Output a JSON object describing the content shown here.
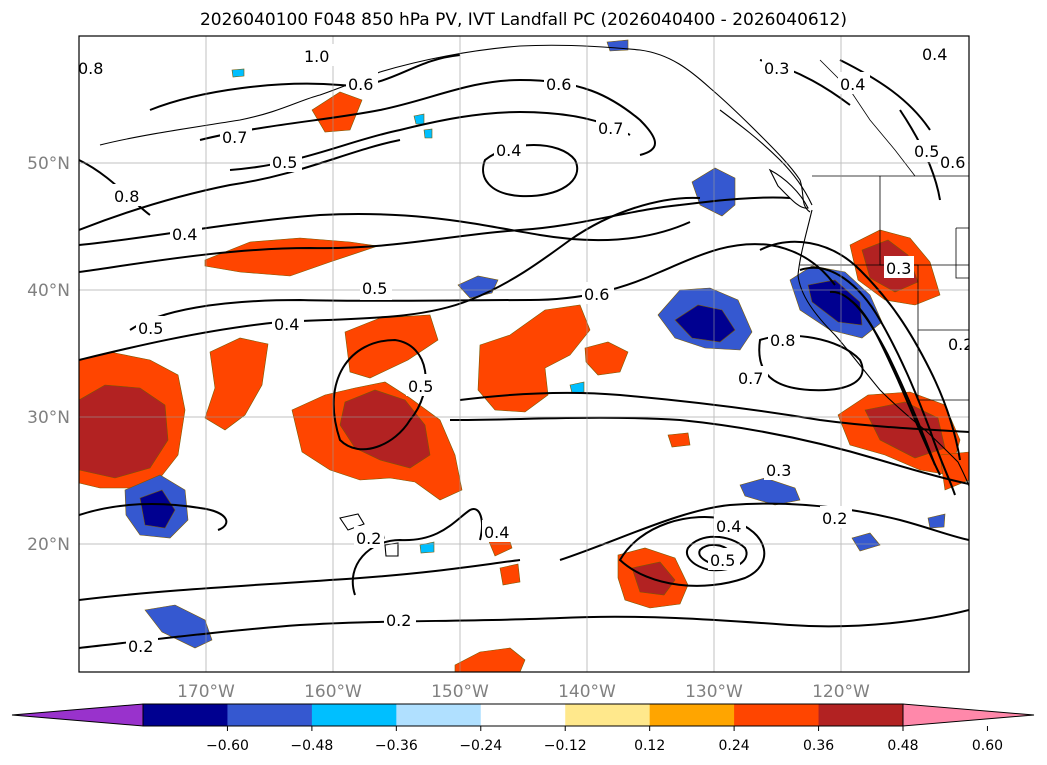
{
  "title": "2026040100 F048 850 hPa PV, IVT Landfall PC (2026040400 - 2026040612)",
  "latitude_labels": [
    "50°N",
    "40°N",
    "30°N",
    "20°N"
  ],
  "longitude_labels": [
    "170°W",
    "160°W",
    "150°W",
    "140°W",
    "130°W",
    "120°W"
  ],
  "colorbar": {
    "ticks": [
      "−0.60",
      "−0.48",
      "−0.36",
      "−0.24",
      "−0.12",
      "0.12",
      "0.24",
      "0.36",
      "0.48",
      "0.60"
    ],
    "colors": [
      "#9932cc",
      "#000090",
      "#3558d0",
      "#00bfff",
      "#b0e0ff",
      "#ffffff",
      "#ffe88c",
      "#ffa500",
      "#ff4500",
      "#b22222",
      "#ff88aa"
    ]
  },
  "contour_labels": [
    "0.8",
    "1.0",
    "0.6",
    "0.7",
    "0.6",
    "0.7",
    "0.3",
    "0.4",
    "0.4",
    "0.5",
    "0.6",
    "0.5",
    "0.4",
    "0.8",
    "0.4",
    "0.5",
    "0.5",
    "0.4",
    "0.6",
    "0.8",
    "0.7",
    "0.5",
    "0.3",
    "0.2",
    "0.3",
    "0.4",
    "0.5",
    "0.2",
    "0.4",
    "0.2",
    "0.2",
    "0.2"
  ]
}
